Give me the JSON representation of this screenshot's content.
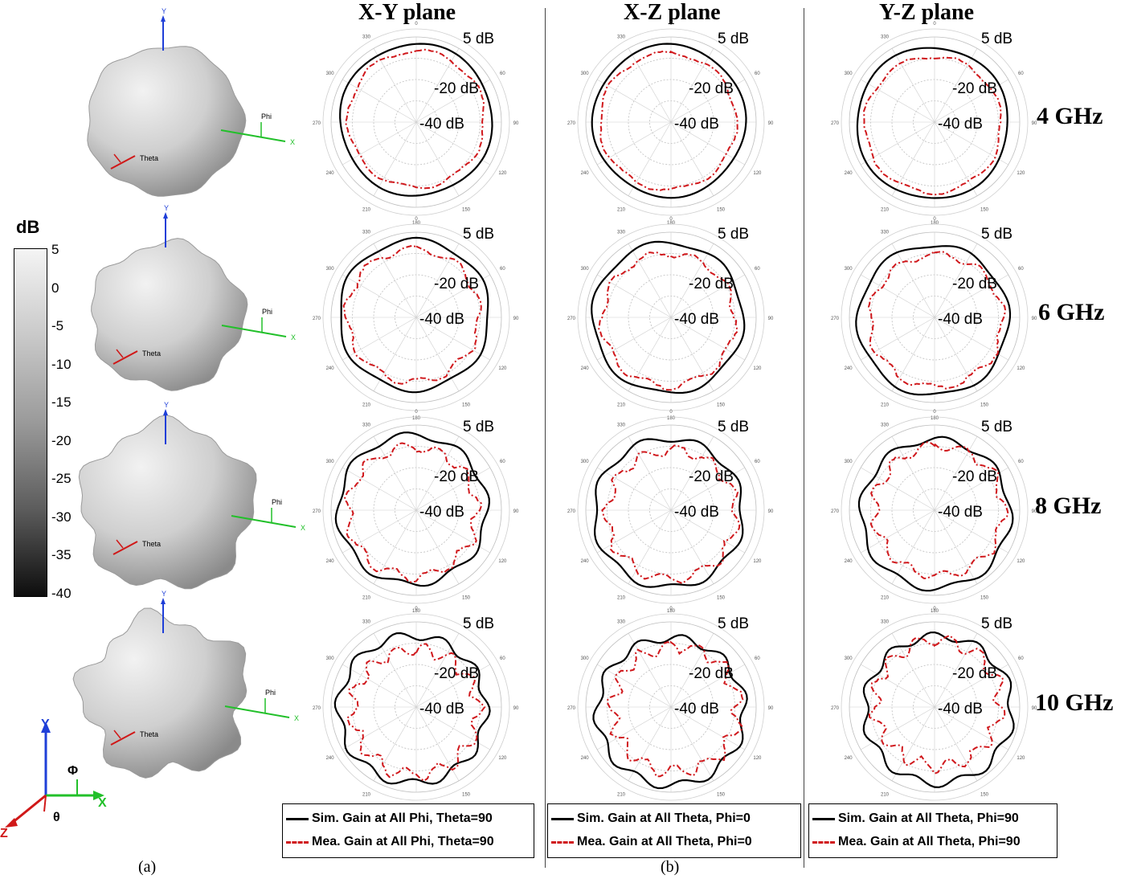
{
  "planes": [
    "X-Y plane",
    "X-Z plane",
    "Y-Z plane"
  ],
  "frequencies": [
    "4 GHz",
    "6 GHz",
    "8 GHz",
    "10 GHz"
  ],
  "polar_labels": {
    "outer": "5 dB",
    "middle": "-20 dB",
    "inner": "-40 dB"
  },
  "angle_ticks": [
    "0",
    "30",
    "60",
    "90",
    "120",
    "150",
    "180",
    "210",
    "240",
    "270",
    "300",
    "330"
  ],
  "colorbar": {
    "unit": "dB",
    "ticks": [
      "5",
      "0",
      "-5",
      "-10",
      "-15",
      "-20",
      "-25",
      "-30",
      "-35",
      "-40"
    ]
  },
  "pattern_labels": {
    "phi": "Phi",
    "theta": "Theta",
    "x": "X",
    "y": "Y"
  },
  "axes_icon": {
    "y": "Y",
    "x": "X",
    "z": "Z",
    "phi": "Φ",
    "theta": "θ"
  },
  "legends": [
    {
      "sim": "Sim. Gain at All Phi, Theta=90",
      "mea": "Mea. Gain at All Phi, Theta=90"
    },
    {
      "sim": "Sim. Gain at All Theta, Phi=0",
      "mea": "Mea. Gain at All Theta, Phi=0"
    },
    {
      "sim": "Sim. Gain at All Theta, Phi=90",
      "mea": "Mea. Gain at All Theta, Phi=90"
    }
  ],
  "captions": {
    "a": "(a)",
    "b": "(b)"
  },
  "colors": {
    "simulated": "#000000",
    "measured": "#d0181c",
    "axis_y": "#1f3fd8",
    "axis_x": "#22c02a",
    "axis_z": "#d01818"
  },
  "chart_data": [
    {
      "type": "polar",
      "plane": "X-Y plane",
      "rlim_db": [
        -40,
        5
      ],
      "series": [
        {
          "name": "Sim. Gain at All Phi, Theta=90",
          "frequencies_ghz": [
            4,
            6,
            8,
            10
          ]
        },
        {
          "name": "Mea. Gain at All Phi, Theta=90",
          "frequencies_ghz": [
            4,
            6,
            8,
            10
          ]
        }
      ]
    },
    {
      "type": "polar",
      "plane": "X-Z plane",
      "rlim_db": [
        -40,
        5
      ],
      "series": [
        {
          "name": "Sim. Gain at All Theta, Phi=0",
          "frequencies_ghz": [
            4,
            6,
            8,
            10
          ]
        },
        {
          "name": "Mea. Gain at All Theta, Phi=0",
          "frequencies_ghz": [
            4,
            6,
            8,
            10
          ]
        }
      ]
    },
    {
      "type": "polar",
      "plane": "Y-Z plane",
      "rlim_db": [
        -40,
        5
      ],
      "series": [
        {
          "name": "Sim. Gain at All Theta, Phi=90",
          "frequencies_ghz": [
            4,
            6,
            8,
            10
          ]
        },
        {
          "name": "Mea. Gain at All Theta, Phi=90",
          "frequencies_ghz": [
            4,
            6,
            8,
            10
          ]
        }
      ]
    }
  ]
}
